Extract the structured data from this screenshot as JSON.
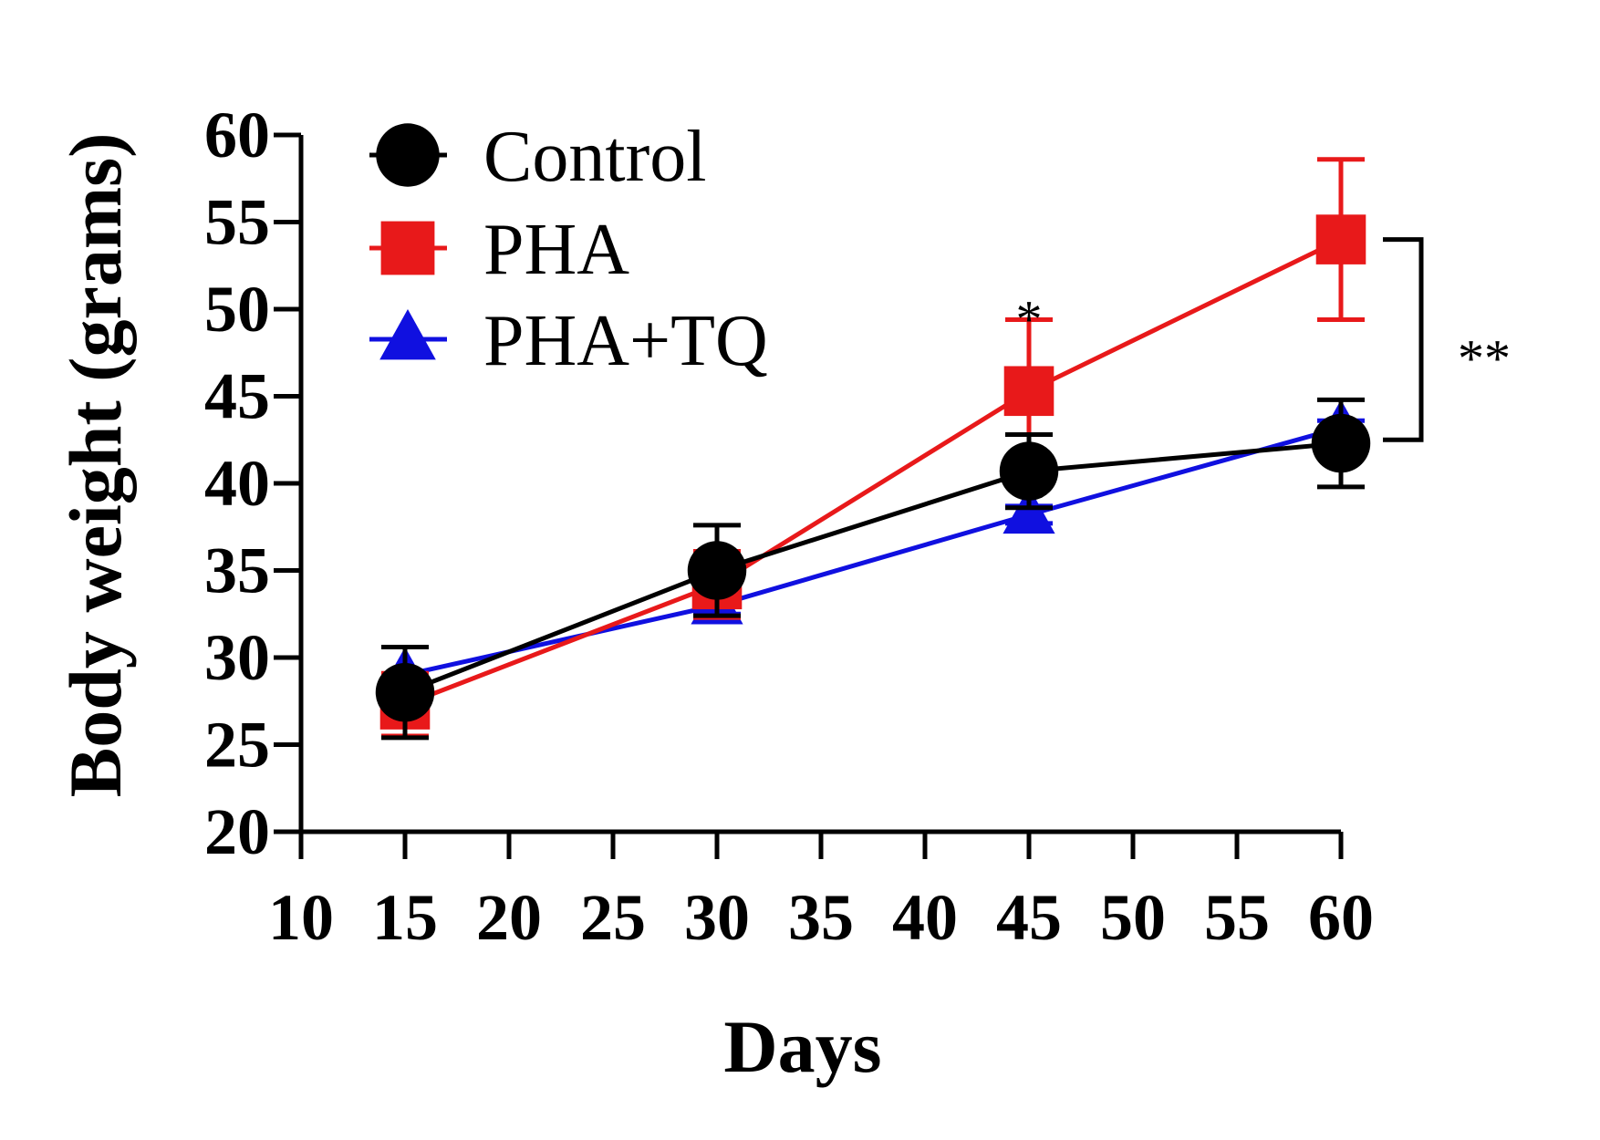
{
  "chart_data": {
    "type": "line",
    "title": "",
    "xlabel": "Days",
    "ylabel": "Body weight (grams)",
    "xlim": [
      10,
      60
    ],
    "ylim": [
      20,
      60
    ],
    "x_ticks": [
      10,
      15,
      20,
      25,
      30,
      35,
      40,
      45,
      50,
      55,
      60
    ],
    "y_ticks": [
      20,
      25,
      30,
      35,
      40,
      45,
      50,
      55,
      60
    ],
    "x": [
      15,
      30,
      45,
      60
    ],
    "grid": false,
    "legend_position": "top-left",
    "series": [
      {
        "name": "Control",
        "color": "#000000",
        "marker": "circle",
        "values": [
          28.0,
          35.0,
          40.7,
          42.3
        ],
        "error": [
          2.6,
          2.6,
          2.1,
          2.5
        ]
      },
      {
        "name": "PHA",
        "color": "#e8191a",
        "marker": "square",
        "values": [
          27.3,
          34.2,
          45.3,
          54.0
        ],
        "error": [
          1.8,
          1.9,
          4.1,
          4.6
        ]
      },
      {
        "name": "PHA+TQ",
        "color": "#1010e0",
        "marker": "triangle",
        "values": [
          29.0,
          33.0,
          38.2,
          43.2
        ],
        "error": [
          0.0,
          0.5,
          0.5,
          0.4
        ]
      }
    ],
    "annotations": [
      {
        "text": "*",
        "x": 45,
        "y": 50.5
      },
      {
        "text": "**",
        "bracket_from": 54.0,
        "bracket_to": 42.5,
        "x": 60
      }
    ]
  }
}
